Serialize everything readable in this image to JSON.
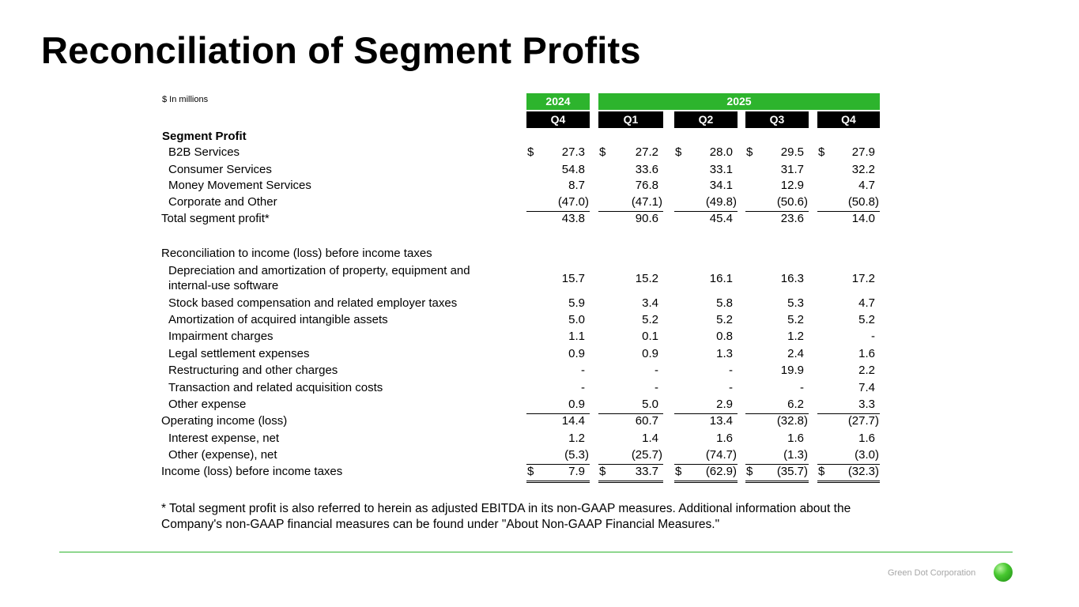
{
  "title": "Reconciliation of Segment Profits",
  "units_label": "$ In millions",
  "colors": {
    "accent_green": "#2db42d",
    "header_black": "#000000"
  },
  "years": [
    {
      "label": "2024"
    },
    {
      "label": "2025"
    }
  ],
  "periods": [
    "Q4",
    "Q1",
    "Q2",
    "Q3",
    "Q4"
  ],
  "segment_profit_header": "Segment Profit",
  "rows": [
    {
      "label": "B2B Services",
      "values": [
        "27.3",
        "27.2",
        "28.0",
        "29.5",
        "27.9"
      ],
      "dollar": true
    },
    {
      "label": "Consumer Services",
      "values": [
        "54.8",
        "33.6",
        "33.1",
        "31.7",
        "32.2"
      ]
    },
    {
      "label": "Money Movement Services",
      "values": [
        "8.7",
        "76.8",
        "34.1",
        "12.9",
        "4.7"
      ]
    },
    {
      "label": "Corporate and Other",
      "values": [
        "(47.0)",
        "(47.1)",
        "(49.8)",
        "(50.6)",
        "(50.8)"
      ]
    },
    {
      "label": "Total segment profit*",
      "values": [
        "43.8",
        "90.6",
        "45.4",
        "23.6",
        "14.0"
      ]
    },
    {
      "label": "Reconciliation to income (loss) before income taxes"
    },
    {
      "label": "Depreciation and amortization of property, equipment and",
      "label2": "internal-use software",
      "values": [
        "15.7",
        "15.2",
        "16.1",
        "16.3",
        "17.2"
      ]
    },
    {
      "label": "Stock based compensation and related employer taxes",
      "values": [
        "5.9",
        "3.4",
        "5.8",
        "5.3",
        "4.7"
      ]
    },
    {
      "label": "Amortization of acquired intangible assets",
      "values": [
        "5.0",
        "5.2",
        "5.2",
        "5.2",
        "5.2"
      ]
    },
    {
      "label": "Impairment charges",
      "values": [
        "1.1",
        "0.1",
        "0.8",
        "1.2",
        "-"
      ]
    },
    {
      "label": "Legal settlement expenses",
      "values": [
        "0.9",
        "0.9",
        "1.3",
        "2.4",
        "1.6"
      ]
    },
    {
      "label": "Restructuring and other charges",
      "values": [
        "-",
        "-",
        "-",
        "19.9",
        "2.2"
      ]
    },
    {
      "label": "Transaction and related acquisition costs",
      "values": [
        "-",
        "-",
        "-",
        "-",
        "7.4"
      ]
    },
    {
      "label": "Other expense",
      "values": [
        "0.9",
        "5.0",
        "2.9",
        "6.2",
        "3.3"
      ]
    },
    {
      "label": "Operating income (loss)",
      "values": [
        "14.4",
        "60.7",
        "13.4",
        "(32.8)",
        "(27.7)"
      ]
    },
    {
      "label": "Interest expense, net",
      "values": [
        "1.2",
        "1.4",
        "1.6",
        "1.6",
        "1.6"
      ]
    },
    {
      "label": "Other (expense), net",
      "values": [
        "(5.3)",
        "(25.7)",
        "(74.7)",
        "(1.3)",
        "(3.0)"
      ]
    },
    {
      "label": "Income (loss) before income taxes",
      "values": [
        "7.9",
        "33.7",
        "(62.9)",
        "(35.7)",
        "(32.3)"
      ],
      "dollar": true
    }
  ],
  "currency_symbol": "$",
  "footnote": "* Total segment profit is also referred to herein as adjusted EBITDA in its non-GAAP measures. Additional information about the Company's non-GAAP financial measures can be found under \"About Non-GAAP Financial Measures.\"",
  "brand": "Green Dot Corporation"
}
